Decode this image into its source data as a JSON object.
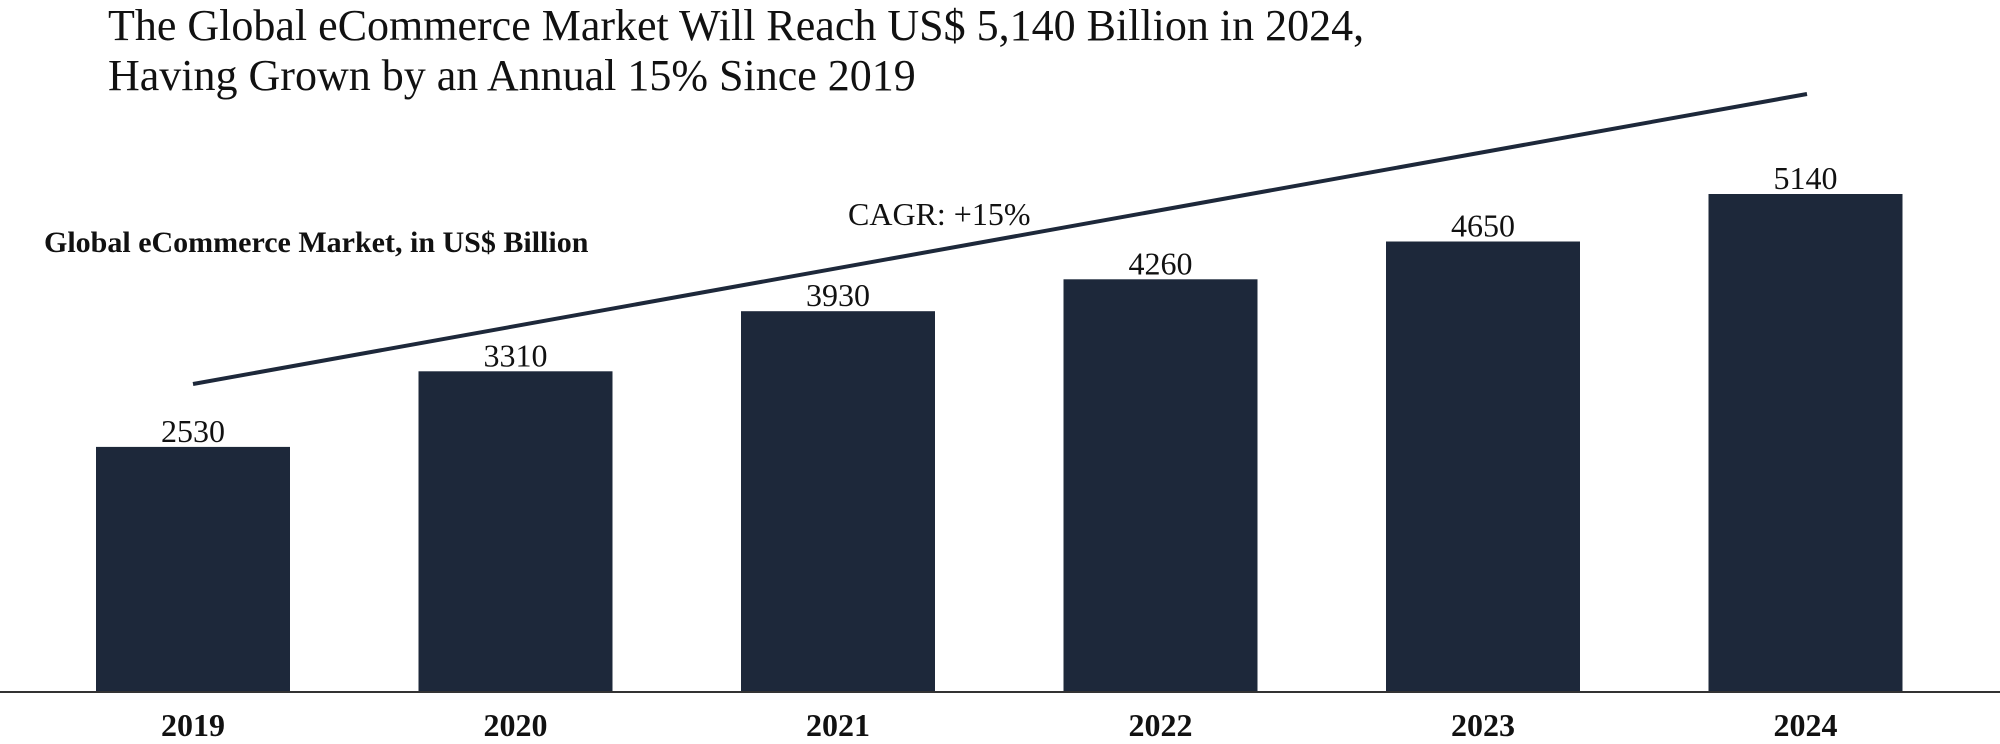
{
  "colors": {
    "bar": "#1d283a",
    "trend_line": "#1d283a",
    "axis": "#333333",
    "text": "#111111",
    "background": "#ffffff"
  },
  "chart_data": {
    "type": "bar",
    "title_lines": [
      "The Global eCommerce Market Will Reach US$ 5,140 Billion in 2024,",
      "Having Grown by an Annual 15% Since 2019"
    ],
    "subtitle": "Global eCommerce Market, in US$ Billion",
    "categories": [
      "2019",
      "2020",
      "2021",
      "2022",
      "2023",
      "2024"
    ],
    "values": [
      2530,
      3310,
      3930,
      4260,
      4650,
      5140
    ],
    "value_labels": [
      "2530",
      "3310",
      "3930",
      "4260",
      "4650",
      "5140"
    ],
    "ylim": [
      0,
      5140
    ],
    "grid": false,
    "legend": "none",
    "annotation": {
      "text": "CAGR: +15%",
      "type": "trend-line"
    }
  }
}
